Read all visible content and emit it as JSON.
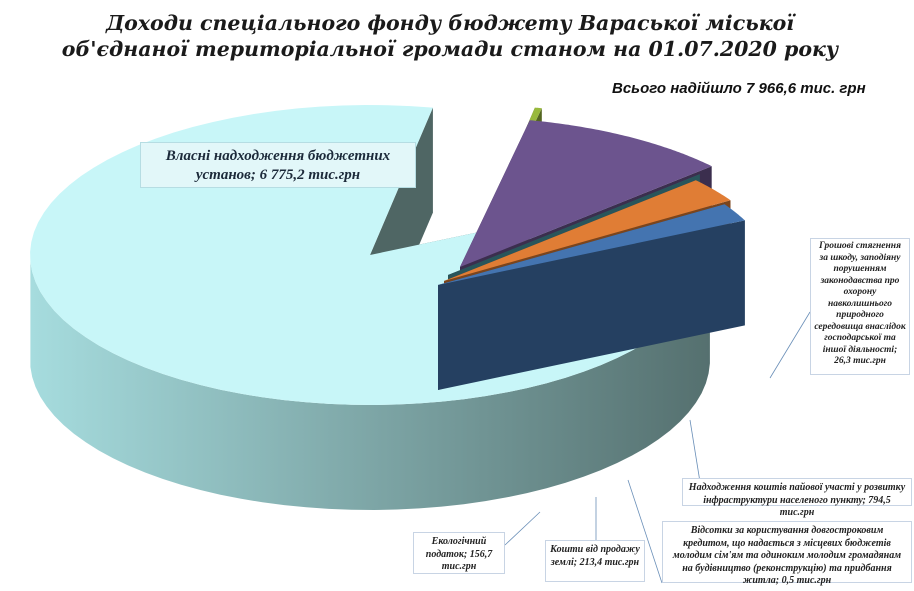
{
  "chart_data": {
    "type": "pie",
    "title": "Доходи спеціального фонду бюджету Вараської міської об'єднаної територіальної громади станом на 01.07.2020 року",
    "total_label": "Всього надійшло  7 966,6 тис. грн",
    "unit": "тис. грн",
    "slices": [
      {
        "name": "Власні надходження бюджетних установ",
        "value": 6775.2,
        "label": "Власні надходження бюджетних установ; 6 775,2 тис.грн",
        "color": "#c8f6f8"
      },
      {
        "name": "Грошові стягнення за шкоду, заподіяну порушенням законодавства про охорону навколишнього природного середовища внаслідок господарської та іншої діяльності",
        "value": 26.3,
        "label": "Грошові стягнення за шкоду, заподіяну порушенням законодавства про охорону навколишнього природного середовища внаслідок господарської та іншої діяльності; 26,3 тис.грн",
        "color": "#98b93c"
      },
      {
        "name": "Надходження коштів пайової участі у розвитку інфраструктури населеного пункту",
        "value": 794.5,
        "label": "Надходження коштів пайової участі у розвитку інфраструктури населеного пункту;  794,5 тис.грн",
        "color": "#6c548e"
      },
      {
        "name": "Відсотки за користування довгостроковим кредитом, що надається з місцевих бюджетів молодим сім'ям та одиноким молодим громадянам на будівництво (реконструкцію) та придбання житла",
        "value": 0.5,
        "label": "Відсотки за користування довгостроковим кредитом, що надається з місцевих бюджетів молодим сім'ям та одиноким молодим громадянам на будівництво (реконструкцію) та придбання житла; 0,5 тис.грн",
        "color": "#4a9aa5"
      },
      {
        "name": "Кошти від продажу землі",
        "value": 213.4,
        "label": "Кошти від продажу землі; 213,4 тис.грн",
        "color": "#e07d35"
      },
      {
        "name": "Екологічний податок",
        "value": 156.7,
        "label": "Екологічний податок; 156,7 тис.грн",
        "color": "#4474b0"
      }
    ]
  }
}
